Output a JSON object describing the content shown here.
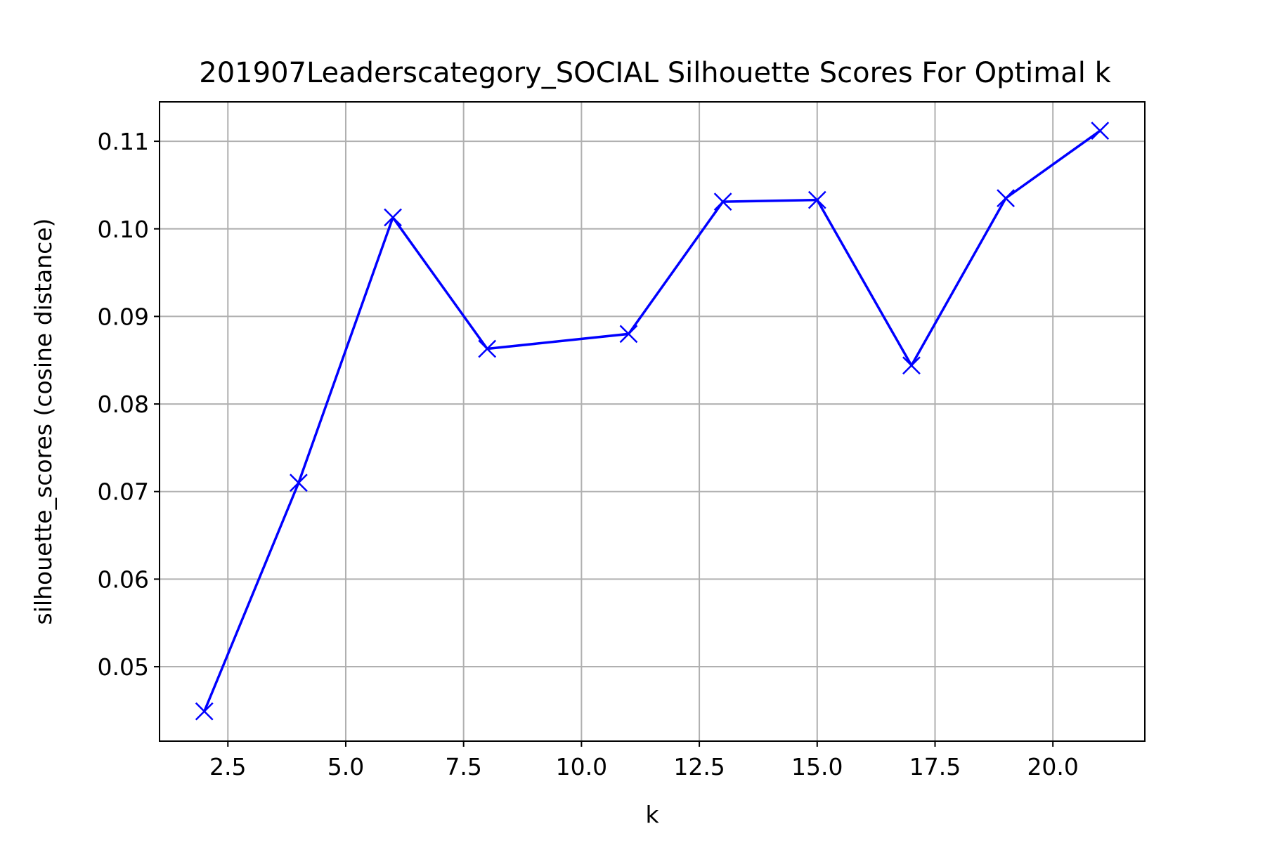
{
  "chart_data": {
    "type": "line",
    "title": "201907Leaderscategory_SOCIAL Silhouette Scores For Optimal k",
    "xlabel": "k",
    "ylabel": "silhouette_scores (cosine distance)",
    "xlim": [
      1.05,
      21.95
    ],
    "ylim": [
      0.0415,
      0.1145
    ],
    "x_ticks": [
      2.5,
      5.0,
      7.5,
      10.0,
      12.5,
      15.0,
      17.5,
      20.0
    ],
    "x_tick_labels": [
      "2.5",
      "5.0",
      "7.5",
      "10.0",
      "12.5",
      "15.0",
      "17.5",
      "20.0"
    ],
    "y_ticks": [
      0.05,
      0.06,
      0.07,
      0.08,
      0.09,
      0.1,
      0.11
    ],
    "y_tick_labels": [
      "0.05",
      "0.06",
      "0.07",
      "0.08",
      "0.09",
      "0.10",
      "0.11"
    ],
    "grid": true,
    "marker": "x",
    "color": "#0000ff",
    "series": [
      {
        "x": [
          2,
          4,
          6,
          8,
          11,
          13,
          15,
          17,
          19,
          21
        ],
        "values": [
          0.0449,
          0.071,
          0.1013,
          0.0863,
          0.088,
          0.1031,
          0.1033,
          0.0844,
          0.1035,
          0.1112
        ]
      }
    ]
  }
}
